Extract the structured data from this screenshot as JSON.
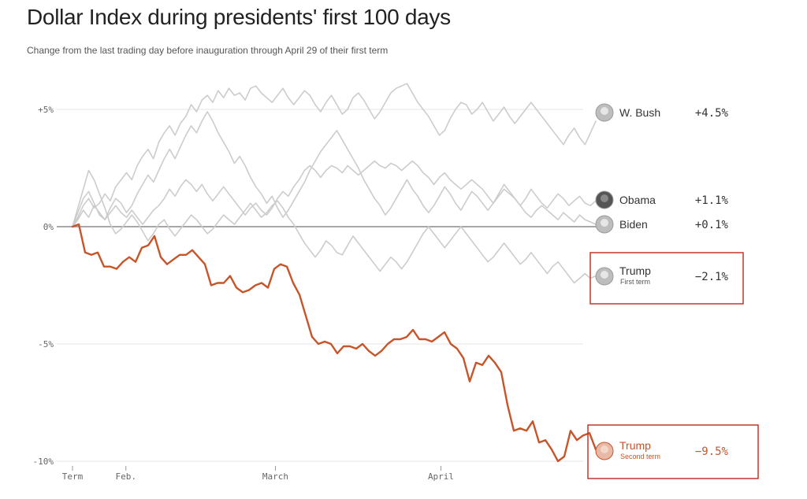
{
  "chart_data": {
    "type": "line",
    "title": "Dollar Index during presidents' first 100 days",
    "subtitle": "Change from the last trading day before inauguration through April 29 of their first term",
    "xlabel": "",
    "ylabel": "",
    "ylim": [
      -10,
      6.5
    ],
    "y_ticks": [
      {
        "value": 5,
        "label": "+5%"
      },
      {
        "value": 0,
        "label": "0%"
      },
      {
        "value": -5,
        "label": "-5%"
      },
      {
        "value": -10,
        "label": "-10%"
      }
    ],
    "x_ticks": [
      {
        "value": 0,
        "label": "Term"
      },
      {
        "value": 10,
        "label": "Feb."
      },
      {
        "value": 38,
        "label": "March"
      },
      {
        "value": 69,
        "label": "April"
      }
    ],
    "x_max": 98,
    "series": [
      {
        "name": "W. Bush",
        "sub": "",
        "label_value": "+4.5%",
        "final": 4.5,
        "highlight": false,
        "color": "#cccccc",
        "values": [
          0,
          0.4,
          0.9,
          1.2,
          0.8,
          1.0,
          1.4,
          1.1,
          1.7,
          2.0,
          2.3,
          2.0,
          2.6,
          3.0,
          3.3,
          2.9,
          3.6,
          4.0,
          4.3,
          3.9,
          4.4,
          4.7,
          5.2,
          4.9,
          5.4,
          5.6,
          5.3,
          5.8,
          5.5,
          5.9,
          5.6,
          5.7,
          5.4,
          5.9,
          6.0,
          5.7,
          5.5,
          5.3,
          5.6,
          5.9,
          5.5,
          5.2,
          5.5,
          5.8,
          5.6,
          5.2,
          4.9,
          5.3,
          5.6,
          5.2,
          4.8,
          5.0,
          5.5,
          5.7,
          5.4,
          5.0,
          4.6,
          4.9,
          5.3,
          5.7,
          5.9,
          6.0,
          6.1,
          5.7,
          5.3,
          5.0,
          4.7,
          4.3,
          3.9,
          4.1,
          4.6,
          5.0,
          5.3,
          5.2,
          4.8,
          5.0,
          5.3,
          4.9,
          4.5,
          4.8,
          5.1,
          4.7,
          4.4,
          4.7,
          5.0,
          5.3,
          5.0,
          4.7,
          4.4,
          4.1,
          3.8,
          3.5,
          3.9,
          4.2,
          3.8,
          3.5,
          4.0,
          4.5
        ]
      },
      {
        "name": "Obama",
        "sub": "",
        "label_value": "+1.1%",
        "final": 1.1,
        "highlight": false,
        "color": "#cccccc",
        "values": [
          0,
          0.6,
          1.2,
          1.5,
          1.0,
          0.5,
          0.3,
          0.8,
          1.2,
          1.0,
          0.6,
          0.9,
          1.4,
          1.8,
          2.2,
          1.9,
          2.4,
          2.9,
          3.3,
          2.9,
          3.4,
          3.9,
          4.3,
          4.0,
          4.5,
          4.9,
          4.5,
          4.0,
          3.6,
          3.2,
          2.7,
          3.0,
          2.6,
          2.1,
          1.7,
          1.4,
          1.0,
          1.3,
          0.8,
          0.4,
          0.7,
          1.1,
          1.5,
          1.9,
          2.4,
          2.8,
          3.2,
          3.5,
          3.8,
          4.1,
          3.7,
          3.3,
          2.9,
          2.5,
          2.0,
          1.6,
          1.2,
          0.9,
          0.5,
          0.8,
          1.2,
          1.6,
          2.0,
          1.6,
          1.3,
          0.9,
          0.6,
          0.9,
          1.3,
          1.7,
          1.4,
          1.0,
          0.7,
          1.1,
          1.5,
          1.3,
          1.0,
          0.7,
          1.0,
          1.4,
          1.8,
          1.5,
          1.2,
          0.9,
          1.2,
          1.6,
          1.3,
          1.0,
          0.8,
          1.1,
          1.4,
          1.2,
          0.9,
          1.1,
          1.3,
          1.0,
          0.9,
          1.1
        ]
      },
      {
        "name": "Biden",
        "sub": "",
        "label_value": "+0.1%",
        "final": 0.1,
        "highlight": false,
        "color": "#cccccc",
        "values": [
          0,
          0.3,
          0.7,
          0.4,
          0.9,
          0.6,
          0.3,
          0.6,
          0.9,
          0.6,
          0.4,
          0.7,
          0.4,
          0.1,
          0.4,
          0.7,
          0.9,
          1.2,
          1.6,
          1.3,
          1.7,
          2.0,
          1.8,
          1.5,
          1.8,
          1.4,
          1.1,
          1.4,
          1.7,
          1.4,
          1.1,
          0.8,
          0.5,
          0.8,
          1.0,
          0.7,
          0.5,
          0.8,
          1.2,
          1.5,
          1.3,
          1.7,
          2.0,
          2.4,
          2.6,
          2.4,
          2.1,
          2.4,
          2.6,
          2.5,
          2.3,
          2.6,
          2.4,
          2.2,
          2.4,
          2.6,
          2.8,
          2.6,
          2.5,
          2.7,
          2.6,
          2.4,
          2.6,
          2.8,
          2.6,
          2.3,
          2.1,
          1.8,
          2.1,
          2.3,
          2.0,
          1.8,
          1.6,
          1.8,
          2.0,
          1.8,
          1.6,
          1.3,
          1.0,
          1.3,
          1.6,
          1.4,
          1.2,
          0.9,
          0.6,
          0.4,
          0.7,
          0.9,
          0.7,
          0.5,
          0.3,
          0.6,
          0.4,
          0.2,
          0.5,
          0.3,
          0.2,
          0.1
        ]
      },
      {
        "name": "Trump",
        "sub": "First term",
        "label_value": "−2.1%",
        "final": -2.1,
        "highlight": false,
        "color": "#cccccc",
        "values": [
          0,
          0.8,
          1.6,
          2.4,
          2.0,
          1.4,
          0.8,
          0.1,
          -0.3,
          -0.1,
          0.2,
          0.5,
          0.2,
          -0.2,
          -0.6,
          -0.3,
          0.1,
          0.3,
          -0.1,
          -0.4,
          -0.1,
          0.2,
          0.5,
          0.3,
          0.0,
          -0.3,
          -0.1,
          0.2,
          0.5,
          0.3,
          0.1,
          0.4,
          0.7,
          1.0,
          0.7,
          0.4,
          0.6,
          0.9,
          1.1,
          0.8,
          0.4,
          0.1,
          -0.3,
          -0.7,
          -1.0,
          -1.3,
          -1.0,
          -0.6,
          -0.8,
          -1.1,
          -1.2,
          -0.8,
          -0.4,
          -0.7,
          -1.0,
          -1.3,
          -1.6,
          -1.9,
          -1.6,
          -1.3,
          -1.5,
          -1.8,
          -1.5,
          -1.1,
          -0.7,
          -0.3,
          0.0,
          -0.3,
          -0.6,
          -0.9,
          -0.6,
          -0.3,
          0.0,
          -0.3,
          -0.6,
          -0.9,
          -1.2,
          -1.5,
          -1.3,
          -1.0,
          -0.7,
          -1.0,
          -1.3,
          -1.6,
          -1.4,
          -1.1,
          -1.4,
          -1.7,
          -2.0,
          -1.7,
          -1.5,
          -1.8,
          -2.1,
          -2.4,
          -2.2,
          -2.0,
          -2.2,
          -2.1
        ]
      },
      {
        "name": "Trump",
        "sub": "Second term",
        "label_value": "−9.5%",
        "final": -9.5,
        "highlight": true,
        "color": "#c8542a",
        "values": [
          0,
          0.1,
          -1.1,
          -1.2,
          -1.1,
          -1.7,
          -1.7,
          -1.8,
          -1.5,
          -1.3,
          -1.5,
          -0.9,
          -0.8,
          -0.4,
          -1.3,
          -1.6,
          -1.4,
          -1.2,
          -1.2,
          -1.0,
          -1.3,
          -1.6,
          -2.5,
          -2.4,
          -2.4,
          -2.1,
          -2.6,
          -2.8,
          -2.7,
          -2.5,
          -2.4,
          -2.6,
          -1.8,
          -1.6,
          -1.7,
          -2.4,
          -2.9,
          -3.8,
          -4.7,
          -5.0,
          -4.9,
          -5.0,
          -5.4,
          -5.1,
          -5.1,
          -5.2,
          -5.0,
          -5.3,
          -5.5,
          -5.3,
          -5.0,
          -4.8,
          -4.8,
          -4.7,
          -4.4,
          -4.8,
          -4.8,
          -4.9,
          -4.7,
          -4.5,
          -5.0,
          -5.2,
          -5.6,
          -6.6,
          -5.8,
          -5.9,
          -5.5,
          -5.8,
          -6.2,
          -7.6,
          -8.7,
          -8.6,
          -8.7,
          -8.3,
          -9.2,
          -9.1,
          -9.5,
          -10.0,
          -9.8,
          -8.7,
          -9.1,
          -8.9,
          -8.8,
          -9.5
        ]
      }
    ]
  }
}
